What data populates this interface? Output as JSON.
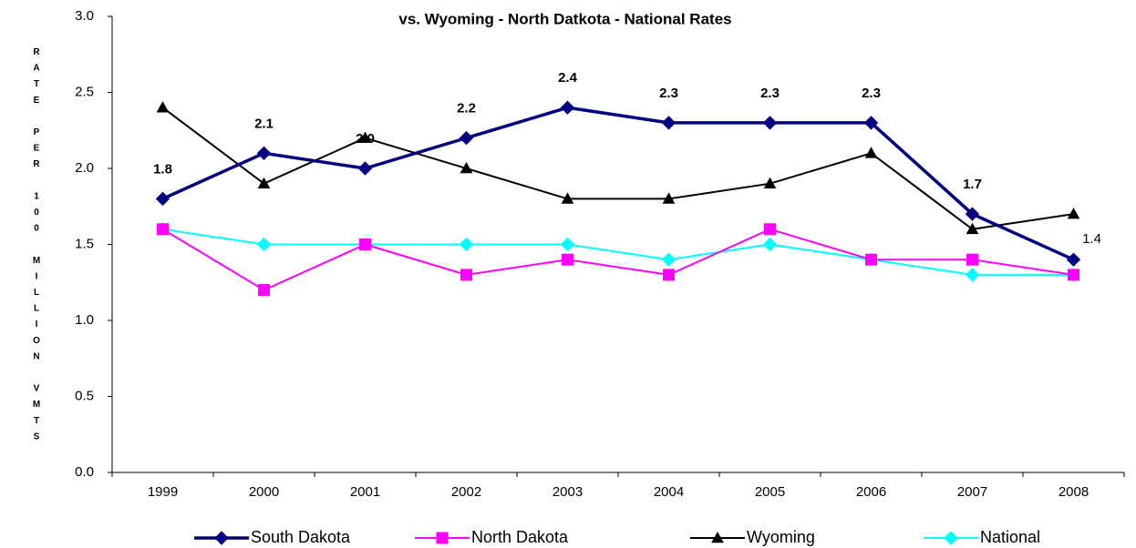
{
  "chart_data": {
    "type": "line",
    "title": "vs. Wyoming - North Datkota - National Rates",
    "y_label": "RATE PER 100 MILLION VMTS",
    "categories": [
      "1999",
      "2000",
      "2001",
      "2002",
      "2003",
      "2004",
      "2005",
      "2006",
      "2007",
      "2008"
    ],
    "series": [
      {
        "name": "South Dakota",
        "color": "#000080",
        "marker": "diamond",
        "values": [
          1.8,
          2.1,
          2.0,
          2.2,
          2.4,
          2.3,
          2.3,
          2.3,
          1.7,
          1.4
        ],
        "value_labels": [
          "1.8",
          "2.1",
          "2.0",
          "2.2",
          "2.4",
          "2.3",
          "2.3",
          "2.3",
          "1.7",
          "1.4"
        ]
      },
      {
        "name": "North Dakota",
        "color": "#ff00ff",
        "marker": "square",
        "values": [
          1.6,
          1.2,
          1.5,
          1.3,
          1.4,
          1.3,
          1.6,
          1.4,
          1.4,
          1.3
        ]
      },
      {
        "name": "Wyoming",
        "color": "#000000",
        "marker": "triangle",
        "values": [
          2.4,
          1.9,
          2.2,
          2.0,
          1.8,
          1.8,
          1.9,
          2.1,
          1.6,
          1.7
        ]
      },
      {
        "name": "National",
        "color": "#00ffff",
        "marker": "diamond",
        "values": [
          1.6,
          1.5,
          1.5,
          1.5,
          1.5,
          1.4,
          1.5,
          1.4,
          1.3,
          1.3
        ]
      }
    ],
    "ylim": [
      0,
      3
    ],
    "yticks": [
      {
        "value": 0,
        "label": "0.0"
      },
      {
        "value": 0.5,
        "label": "0.5"
      },
      {
        "value": 1,
        "label": "1.0"
      },
      {
        "value": 1.5,
        "label": "1.5"
      },
      {
        "value": 2,
        "label": "2.0"
      },
      {
        "value": 2.5,
        "label": "2.5"
      },
      {
        "value": 3,
        "label": "3.0"
      }
    ],
    "grid": false,
    "legend": "bottom"
  }
}
